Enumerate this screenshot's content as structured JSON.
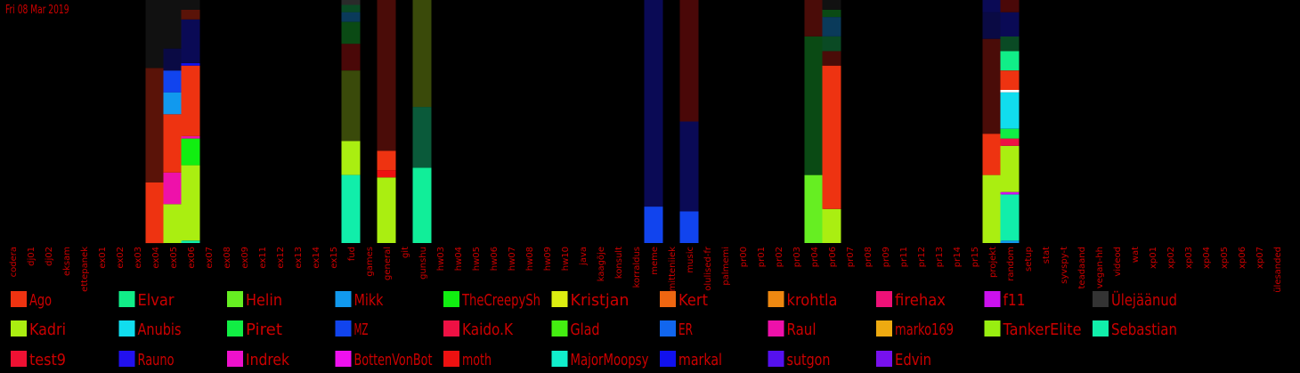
{
  "date_label": "Fri 08 Mar 2019",
  "chart_data": {
    "type": "bar",
    "stacked": true,
    "ylim": [
      0,
      100
    ],
    "categories": [
      "codera",
      "dj01",
      "dj02",
      "eksam",
      "ettepanek",
      "ex01",
      "ex02",
      "ex03",
      "ex04",
      "ex05",
      "ex06",
      "ex07",
      "ex08",
      "ex09",
      "ex11",
      "ex12",
      "ex13",
      "ex14",
      "ex15",
      "fud",
      "games",
      "general",
      "git",
      "gunshu",
      "hw03",
      "hw04",
      "hw05",
      "hw06",
      "hw07",
      "hw08",
      "hw09",
      "hw10",
      "java",
      "kaagõje",
      "konsult",
      "korraldus",
      "meme",
      "mitteniiek",
      "music",
      "olulised-fr",
      "palmemi",
      "pr00",
      "pr01",
      "pr02",
      "pr03",
      "pr04",
      "pr06",
      "pr07",
      "pr08",
      "pr09",
      "pr11",
      "pr12",
      "pr13",
      "pr14",
      "pr15",
      "projekt",
      "random",
      "setup",
      "stat",
      "syvspy-t",
      "teadaand",
      "vegan-hh",
      "videod",
      "wat",
      "xp01",
      "xp02",
      "xp03",
      "xp04",
      "xp05",
      "xp06",
      "xp07",
      "ülesanded"
    ],
    "users": [
      {
        "name": "Ago",
        "color": "#ee3311"
      },
      {
        "name": "Elvar",
        "color": "#11ee88"
      },
      {
        "name": "Helin",
        "color": "#66ee22"
      },
      {
        "name": "Mikk",
        "color": "#1199ee"
      },
      {
        "name": "TheCreepySh",
        "color": "#11ee11"
      },
      {
        "name": "Kristjan",
        "color": "#ddee11"
      },
      {
        "name": "Kert",
        "color": "#ee6611"
      },
      {
        "name": "krohtla",
        "color": "#ee8811"
      },
      {
        "name": "firehax",
        "color": "#ee1177"
      },
      {
        "name": "f11",
        "color": "#cc11ee"
      },
      {
        "name": "Ülejäänud",
        "color": "#333333"
      },
      {
        "name": "Kadri",
        "color": "#aaee11"
      },
      {
        "name": "Anubis",
        "color": "#11ddee"
      },
      {
        "name": "Piret",
        "color": "#11ee44"
      },
      {
        "name": "MZ",
        "color": "#1144ee"
      },
      {
        "name": "Kaido.K",
        "color": "#ee1144"
      },
      {
        "name": "Glad",
        "color": "#44ee11"
      },
      {
        "name": "ER",
        "color": "#1166ee"
      },
      {
        "name": "Raul",
        "color": "#ee11aa"
      },
      {
        "name": "marko169",
        "color": "#eeaa11"
      },
      {
        "name": "TankerElite",
        "color": "#99ee11"
      },
      {
        "name": "Sebastian",
        "color": "#11eeaa"
      },
      {
        "name": "test9",
        "color": "#ee1133"
      },
      {
        "name": "Rauno",
        "color": "#2211ee"
      },
      {
        "name": "Indrek",
        "color": "#ee11cc"
      },
      {
        "name": "BottenVonBot",
        "color": "#ee11ee"
      },
      {
        "name": "moth",
        "color": "#ee1111"
      },
      {
        "name": "MajorMoopsy",
        "color": "#11eecc"
      },
      {
        "name": "markal",
        "color": "#1111ee"
      },
      {
        "name": "sutgon",
        "color": "#5511ee"
      },
      {
        "name": "Edvin",
        "color": "#7711ee"
      }
    ],
    "bars": [
      {
        "category": "ex04",
        "segments": [
          {
            "color": "#ee3311",
            "value": 25
          },
          {
            "color": "#5a1308",
            "value": 47
          },
          {
            "color": "#111111",
            "value": 28
          }
        ]
      },
      {
        "category": "ex05",
        "segments": [
          {
            "color": "#aaee11",
            "value": 16
          },
          {
            "color": "#ee11aa",
            "value": 13
          },
          {
            "color": "#ee3311",
            "value": 24
          },
          {
            "color": "#1199ee",
            "value": 9
          },
          {
            "color": "#1144ee",
            "value": 9
          },
          {
            "color": "#0a0a44",
            "value": 9
          },
          {
            "color": "#111111",
            "value": 20
          }
        ]
      },
      {
        "category": "ex06",
        "segments": [
          {
            "color": "#11eeaa",
            "value": 1
          },
          {
            "color": "#aaee11",
            "value": 31
          },
          {
            "color": "#11ee11",
            "value": 11
          },
          {
            "color": "#ee11aa",
            "value": 1
          },
          {
            "color": "#ee3311",
            "value": 29
          },
          {
            "color": "#1111ee",
            "value": 1
          },
          {
            "color": "#0a0a55",
            "value": 18
          },
          {
            "color": "#5a1308",
            "value": 4
          },
          {
            "color": "#111111",
            "value": 5
          }
        ]
      },
      {
        "category": "fud",
        "segments": [
          {
            "color": "#11eeaa",
            "value": 28
          },
          {
            "color": "#aaee11",
            "value": 14
          },
          {
            "color": "#3a4a0a",
            "value": 29
          },
          {
            "color": "#4a0808",
            "value": 11
          },
          {
            "color": "#0a4a14",
            "value": 9
          },
          {
            "color": "#0a3a5a",
            "value": 4
          },
          {
            "color": "#0a4a24",
            "value": 3
          },
          {
            "color": "#2a2a2a",
            "value": 2
          }
        ]
      },
      {
        "category": "general",
        "segments": [
          {
            "color": "#aaee11",
            "value": 27
          },
          {
            "color": "#ee1111",
            "value": 3
          },
          {
            "color": "#ee3311",
            "value": 8
          },
          {
            "color": "#4a0c08",
            "value": 62
          }
        ]
      },
      {
        "category": "gunshu",
        "segments": [
          {
            "color": "#11ee99",
            "value": 31
          },
          {
            "color": "#0a5a3a",
            "value": 25
          },
          {
            "color": "#3a4a0a",
            "value": 44
          }
        ]
      },
      {
        "category": "meme",
        "segments": [
          {
            "color": "#1144ee",
            "value": 15
          },
          {
            "color": "#0a0a55",
            "value": 85
          }
        ]
      },
      {
        "category": "music",
        "segments": [
          {
            "color": "#1144ee",
            "value": 13
          },
          {
            "color": "#0a0a55",
            "value": 37
          },
          {
            "color": "#4a0808",
            "value": 50
          }
        ]
      },
      {
        "category": "pr04",
        "segments": [
          {
            "color": "#66ee22",
            "value": 28
          },
          {
            "color": "#0a4a14",
            "value": 57
          },
          {
            "color": "#4a0c08",
            "value": 15
          }
        ]
      },
      {
        "category": "pr06",
        "segments": [
          {
            "color": "#aaee11",
            "value": 14
          },
          {
            "color": "#ee3311",
            "value": 59
          },
          {
            "color": "#4a0c08",
            "value": 6
          },
          {
            "color": "#0a4a24",
            "value": 6
          },
          {
            "color": "#0a3a5a",
            "value": 8
          },
          {
            "color": "#0a4a14",
            "value": 3
          },
          {
            "color": "#111111",
            "value": 4
          }
        ]
      },
      {
        "category": "projekt",
        "segments": [
          {
            "color": "#aaee11",
            "value": 28
          },
          {
            "color": "#ee3311",
            "value": 17
          },
          {
            "color": "#4a0c08",
            "value": 39
          },
          {
            "color": "#0a0a44",
            "value": 11
          },
          {
            "color": "#0a0a55",
            "value": 5
          }
        ]
      },
      {
        "category": "random",
        "segments": [
          {
            "color": "#1199ee",
            "value": 1
          },
          {
            "color": "#11eeaa",
            "value": 19
          },
          {
            "color": "#cc11ee",
            "value": 1
          },
          {
            "color": "#aaee11",
            "value": 19
          },
          {
            "color": "#ee1144",
            "value": 3
          },
          {
            "color": "#11ee44",
            "value": 4
          },
          {
            "color": "#11ddee",
            "value": 15
          },
          {
            "color": "#ffffff",
            "value": 1
          },
          {
            "color": "#ee3311",
            "value": 8
          },
          {
            "color": "#11ee88",
            "value": 8
          },
          {
            "color": "#0a4a24",
            "value": 6
          },
          {
            "color": "#0a0a55",
            "value": 10
          },
          {
            "color": "#4a0808",
            "value": 5
          }
        ]
      }
    ]
  }
}
